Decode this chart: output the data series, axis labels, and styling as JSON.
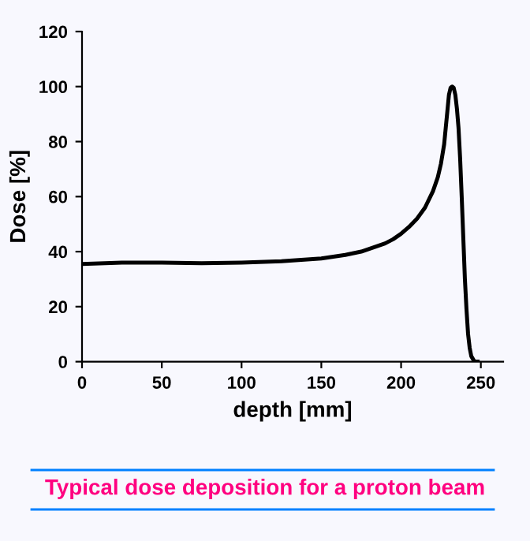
{
  "chart_data": {
    "type": "line",
    "xlabel": "depth [mm]",
    "ylabel": "Dose [%]",
    "annotations": [
      "Typical dose deposition for a proton beam"
    ],
    "series": [
      {
        "color": "#000000",
        "x": [
          0,
          25,
          50,
          75,
          100,
          125,
          150,
          165,
          175,
          185,
          190,
          195,
          200,
          205,
          210,
          215,
          220,
          223,
          225,
          227,
          228,
          229,
          230,
          231,
          232,
          233,
          234,
          235,
          236,
          237,
          238,
          239,
          240,
          241,
          242,
          243,
          244,
          246,
          248
        ],
        "values": [
          35.5,
          36,
          36,
          35.8,
          36,
          36.5,
          37.5,
          38.8,
          40,
          42,
          43,
          44.5,
          46.5,
          49,
          52,
          56,
          62,
          67,
          72,
          79,
          85,
          91,
          97,
          99.5,
          100,
          99.5,
          97,
          92,
          85,
          74,
          60,
          45,
          30,
          19,
          10,
          5,
          2,
          0,
          0
        ]
      }
    ],
    "xlim": [
      0,
      264
    ],
    "ylim": [
      0,
      120
    ],
    "xticks": [
      0,
      50,
      100,
      150,
      200,
      250
    ],
    "yticks": [
      0,
      20,
      40,
      60,
      80,
      100,
      120
    ],
    "grid": false,
    "legend": false,
    "marker": "none",
    "line_style": "solid"
  }
}
